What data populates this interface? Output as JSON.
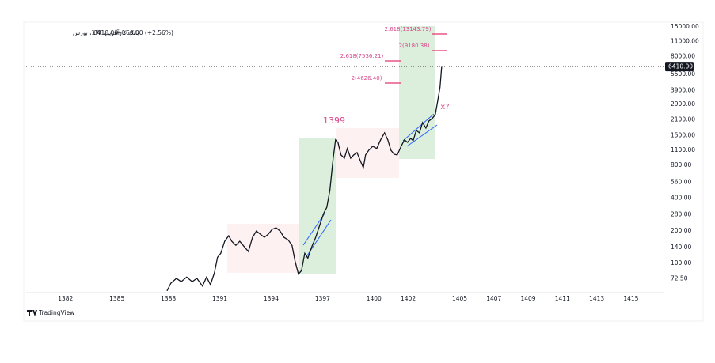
{
  "chart_data": {
    "type": "line",
    "title": "بانک کارآفرین، 1W، بورس",
    "last_text": "6410.00",
    "change_text": "+160.00 (+2.56%)",
    "brand": "TradingView",
    "log": true,
    "grid": false,
    "color": "#131722",
    "xlim": [
      1379.7,
      1416.9
    ],
    "ylim": [
      54,
      16000
    ],
    "xticks": [
      1382,
      1385,
      1388,
      1391,
      1394,
      1397,
      1400,
      1402,
      1405,
      1407,
      1409,
      1411,
      1413,
      1415
    ],
    "yticks": [
      {
        "value": 15000,
        "label": "15000.00"
      },
      {
        "value": 11000,
        "label": "11000.00"
      },
      {
        "value": 8000,
        "label": "8000.00"
      },
      {
        "value": 5500,
        "label": "5500.00"
      },
      {
        "value": 3900,
        "label": "3900.00"
      },
      {
        "value": 2900,
        "label": "2900.00"
      },
      {
        "value": 2100,
        "label": "2100.00"
      },
      {
        "value": 1500,
        "label": "1500.00"
      },
      {
        "value": 1100,
        "label": "1100.00"
      },
      {
        "value": 800,
        "label": "800.00"
      },
      {
        "value": 560,
        "label": "560.00"
      },
      {
        "value": 400,
        "label": "400.00"
      },
      {
        "value": 280,
        "label": "280.00"
      },
      {
        "value": 200,
        "label": "200.00"
      },
      {
        "value": 140,
        "label": "140.00"
      },
      {
        "value": 100,
        "label": "100.00"
      },
      {
        "value": 72.5,
        "label": "72.50"
      }
    ],
    "last_value": 6410,
    "last_label": "6410.00",
    "annotations": [
      "2.618(13143.79)",
      "2(9180.38)",
      "2.618(7536.21)",
      "2(4626.40)",
      "1399",
      "x?"
    ],
    "x": [
      1387.92,
      1388.15,
      1388.47,
      1388.75,
      1389.07,
      1389.39,
      1389.67,
      1389.99,
      1390.23,
      1390.46,
      1390.69,
      1390.87,
      1391.06,
      1391.29,
      1391.52,
      1391.7,
      1391.94,
      1392.17,
      1392.44,
      1392.67,
      1392.91,
      1393.14,
      1393.37,
      1393.6,
      1393.83,
      1394.06,
      1394.29,
      1394.52,
      1394.75,
      1394.99,
      1395.22,
      1395.4,
      1395.59,
      1395.77,
      1395.96,
      1396.14,
      1396.37,
      1396.6,
      1396.83,
      1397.06,
      1397.25,
      1397.43,
      1397.62,
      1397.76,
      1397.9,
      1398.08,
      1398.27,
      1398.45,
      1398.64,
      1398.82,
      1399.01,
      1399.24,
      1399.38,
      1399.51,
      1399.7,
      1399.93,
      1400.16,
      1400.39,
      1400.62,
      1400.81,
      1400.99,
      1401.18,
      1401.36,
      1401.59,
      1401.78,
      1401.96,
      1402.15,
      1402.29,
      1402.47,
      1402.66,
      1402.84,
      1403.03,
      1403.21,
      1403.4,
      1403.58,
      1403.72,
      1403.86,
      1403.95
    ],
    "series": [
      {
        "name": "close",
        "color": "#131722",
        "values": [
          56,
          66,
          73,
          68,
          75,
          68,
          73,
          62,
          75,
          64,
          82,
          114,
          124,
          160,
          180,
          160,
          147,
          160,
          142,
          129,
          174,
          199,
          186,
          174,
          186,
          206,
          213,
          199,
          174,
          165,
          147,
          105,
          80,
          86,
          124,
          112,
          142,
          174,
          224,
          288,
          329,
          476,
          930,
          1370,
          1300,
          995,
          930,
          1140,
          930,
          995,
          1046,
          855,
          760,
          995,
          1100,
          1197,
          1140,
          1370,
          1590,
          1370,
          1100,
          1010,
          995,
          1197,
          1370,
          1300,
          1415,
          1345,
          1673,
          1590,
          1978,
          1760,
          2047,
          2153,
          2340,
          3113,
          4206,
          6410
        ]
      }
    ]
  }
}
